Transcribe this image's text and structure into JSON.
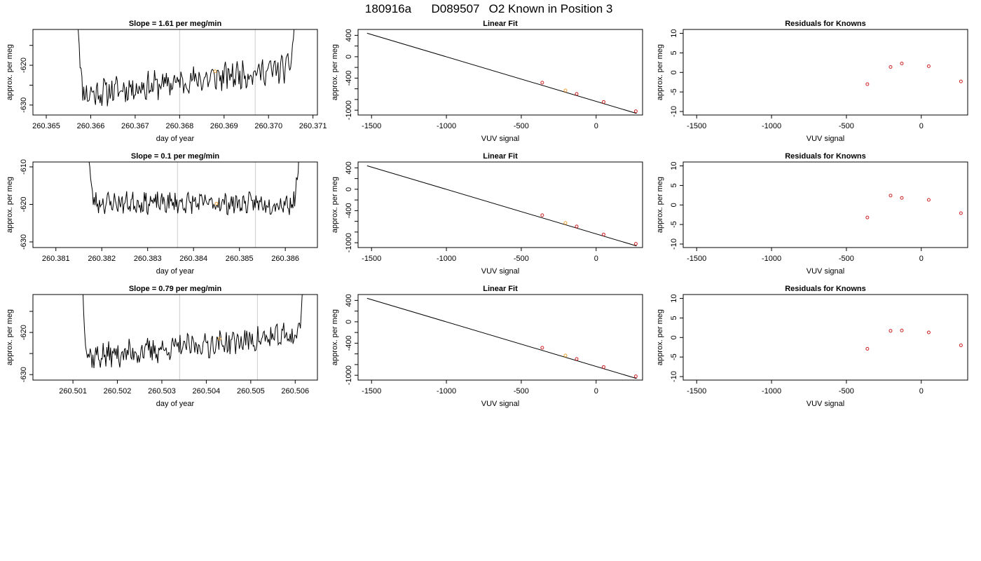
{
  "figure": {
    "title_parts": [
      "180916a",
      "D089507",
      "O2 Known in Position  3"
    ]
  },
  "chart_data": [
    {
      "type": "line",
      "title_prefix": "Slope = ",
      "slope": "1.61",
      "title_suffix": " per meg/min",
      "xlabel": "day of year",
      "ylabel": "approx. per meg",
      "xlim": [
        260.3647,
        260.3711
      ],
      "ylim": [
        -632.5,
        -611
      ],
      "xticks": [
        "260.365",
        "260.366",
        "260.367",
        "260.368",
        "260.369",
        "260.370",
        "260.371"
      ],
      "yticks": [
        "-620",
        "-630"
      ],
      "yticks_minor": [
        -615,
        -625
      ],
      "grid_x": [
        260.368,
        260.3697
      ],
      "trace": {
        "x_start": 260.3657,
        "x_end": 260.3706,
        "start_value": -606,
        "end_value": -608,
        "base_start": -627.5,
        "base_end": -620.5,
        "noise": 3,
        "seed": 11
      },
      "marker": {
        "x": 260.3688,
        "y": -621.5,
        "color": "#e8a33a"
      }
    },
    {
      "type": "scatter",
      "title": "Linear Fit",
      "xlabel": "VUV signal",
      "ylabel": "approx. per meg",
      "xlim": [
        -1590,
        310
      ],
      "ylim": [
        -1090,
        510
      ],
      "xticks": [
        "-1500",
        "-1000",
        "-500",
        "0"
      ],
      "yticks": [
        "400",
        "0",
        "-400",
        "-1000"
      ],
      "yticks_minor": [
        200,
        -200,
        -600,
        -800
      ],
      "fit_line": {
        "x": [
          -1530,
          270
        ],
        "y": [
          440,
          -1060
        ]
      },
      "points": {
        "x": [
          -360,
          -205,
          -130,
          50,
          265
        ],
        "y": [
          -485,
          -630,
          -695,
          -845,
          -1020
        ]
      },
      "highlight_index": 1,
      "point_color": "#cc2222",
      "highlight_color": "#e8a33a"
    },
    {
      "type": "scatter",
      "title": "Residuals for Knowns",
      "xlabel": "VUV signal",
      "ylabel": "approx. per meg",
      "xlim": [
        -1590,
        310
      ],
      "ylim": [
        -10.9,
        11
      ],
      "xticks": [
        "-1500",
        "-1000",
        "-500",
        "0"
      ],
      "yticks": [
        "10",
        "5",
        "0",
        "-5",
        "-10"
      ],
      "points": {
        "x": [
          -360,
          -205,
          -130,
          50,
          265
        ],
        "y": [
          -3.0,
          1.4,
          2.3,
          1.6,
          -2.3
        ]
      },
      "point_color": "#cc2222"
    },
    {
      "type": "line",
      "title_prefix": "Slope = ",
      "slope": "0.1",
      "title_suffix": " per meg/min",
      "xlabel": "day of year",
      "ylabel": "approx. per meg",
      "xlim": [
        260.3805,
        260.3867
      ],
      "ylim": [
        -631.5,
        -608.7
      ],
      "xticks": [
        "260.381",
        "260.382",
        "260.383",
        "260.384",
        "260.385",
        "260.386"
      ],
      "yticks": [
        "-610",
        "-620",
        "-630"
      ],
      "grid_x": [
        260.38365,
        260.38535
      ],
      "trace": {
        "x_start": 260.3817,
        "x_end": 260.3863,
        "start_value": -605,
        "end_value": -607,
        "base_start": -619.5,
        "base_end": -619.8,
        "noise": 2.4,
        "seed": 23
      },
      "marker": {
        "x": 260.3845,
        "y": -619.8,
        "color": "#e8a33a"
      }
    },
    {
      "type": "scatter",
      "title": "Linear Fit",
      "xlabel": "VUV signal",
      "ylabel": "approx. per meg",
      "xlim": [
        -1590,
        310
      ],
      "ylim": [
        -1090,
        510
      ],
      "xticks": [
        "-1500",
        "-1000",
        "-500",
        "0"
      ],
      "yticks": [
        "400",
        "0",
        "-400",
        "-1000"
      ],
      "yticks_minor": [
        200,
        -200,
        -600,
        -800
      ],
      "fit_line": {
        "x": [
          -1530,
          270
        ],
        "y": [
          440,
          -1060
        ]
      },
      "points": {
        "x": [
          -360,
          -205,
          -130,
          50,
          265
        ],
        "y": [
          -485,
          -630,
          -695,
          -845,
          -1020
        ]
      },
      "highlight_index": 1,
      "point_color": "#cc2222",
      "highlight_color": "#e8a33a"
    },
    {
      "type": "scatter",
      "title": "Residuals for Knowns",
      "xlabel": "VUV signal",
      "ylabel": "approx. per meg",
      "xlim": [
        -1590,
        310
      ],
      "ylim": [
        -10.9,
        11
      ],
      "xticks": [
        "-1500",
        "-1000",
        "-500",
        "0"
      ],
      "yticks": [
        "10",
        "5",
        "0",
        "-5",
        "-10"
      ],
      "points": {
        "x": [
          -360,
          -205,
          -130,
          50,
          265
        ],
        "y": [
          -3.2,
          2.4,
          1.8,
          1.3,
          -2.1
        ]
      },
      "point_color": "#cc2222"
    },
    {
      "type": "line",
      "title_prefix": "Slope = ",
      "slope": "0.79",
      "title_suffix": " per meg/min",
      "xlabel": "day of year",
      "ylabel": "approx. per meg",
      "xlim": [
        260.5001,
        260.5065
      ],
      "ylim": [
        -631.3,
        -611
      ],
      "xticks": [
        "260.501",
        "260.502",
        "260.503",
        "260.504",
        "260.505",
        "260.506"
      ],
      "yticks": [
        "-620",
        "-630"
      ],
      "yticks_minor": [
        -615,
        -625
      ],
      "grid_x": [
        260.5034,
        260.50515
      ],
      "trace": {
        "x_start": 260.5012,
        "x_end": 260.5062,
        "start_value": -606,
        "end_value": -607,
        "base_start": -626,
        "base_end": -620.5,
        "noise": 2.6,
        "seed": 37
      },
      "marker": {
        "x": 260.5043,
        "y": -621.5,
        "color": "#e8a33a"
      }
    },
    {
      "type": "scatter",
      "title": "Linear Fit",
      "xlabel": "VUV signal",
      "ylabel": "approx. per meg",
      "xlim": [
        -1590,
        310
      ],
      "ylim": [
        -1090,
        510
      ],
      "xticks": [
        "-1500",
        "-1000",
        "-500",
        "0"
      ],
      "yticks": [
        "400",
        "0",
        "-400",
        "-1000"
      ],
      "yticks_minor": [
        200,
        -200,
        -600,
        -800
      ],
      "fit_line": {
        "x": [
          -1530,
          270
        ],
        "y": [
          440,
          -1060
        ]
      },
      "points": {
        "x": [
          -360,
          -205,
          -130,
          50,
          265
        ],
        "y": [
          -485,
          -630,
          -695,
          -845,
          -1020
        ]
      },
      "highlight_index": 1,
      "point_color": "#cc2222",
      "highlight_color": "#e8a33a"
    },
    {
      "type": "scatter",
      "title": "Residuals for Knowns",
      "xlabel": "VUV signal",
      "ylabel": "approx. per meg",
      "xlim": [
        -1590,
        310
      ],
      "ylim": [
        -10.9,
        11
      ],
      "xticks": [
        "-1500",
        "-1000",
        "-500",
        "0"
      ],
      "yticks": [
        "10",
        "5",
        "0",
        "-5",
        "-10"
      ],
      "points": {
        "x": [
          -360,
          -205,
          -130,
          50,
          265
        ],
        "y": [
          -2.9,
          1.7,
          1.8,
          1.3,
          -2.0
        ]
      },
      "point_color": "#cc2222"
    }
  ]
}
